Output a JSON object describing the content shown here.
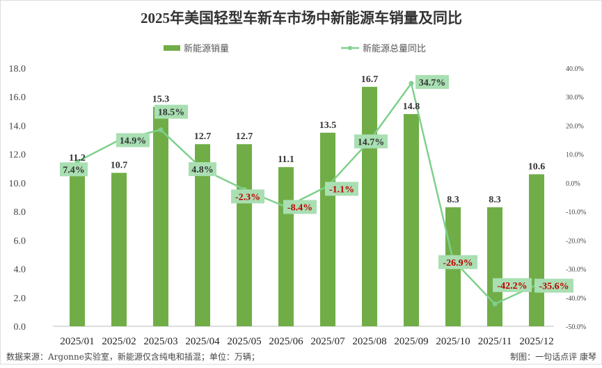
{
  "chart_data": {
    "type": "bar+line",
    "title": "2025年美国轻型车新车市场中新能源车销量及同比",
    "categories": [
      "2025/01",
      "2025/02",
      "2025/03",
      "2025/04",
      "2025/05",
      "2025/06",
      "2025/07",
      "2025/08",
      "2025/09",
      "2025/10",
      "2025/11",
      "2025/12"
    ],
    "series": [
      {
        "name": "新能源销量",
        "type": "bar",
        "axis": "left",
        "values": [
          11.2,
          10.7,
          15.3,
          12.7,
          12.7,
          11.1,
          13.5,
          16.7,
          14.8,
          8.3,
          8.3,
          10.6
        ],
        "labels": [
          "11.2",
          "10.7",
          "15.3",
          "12.7",
          "12.7",
          "11.1",
          "13.5",
          "16.7",
          "14.8",
          "8.3",
          "8.3",
          "10.6"
        ]
      },
      {
        "name": "新能源总量同比",
        "type": "line",
        "axis": "right",
        "values": [
          7.4,
          14.9,
          18.5,
          4.8,
          -2.3,
          -8.4,
          -1.1,
          14.7,
          34.7,
          -26.9,
          -42.2,
          -35.6
        ],
        "labels": [
          "7.4%",
          "14.9%",
          "18.5%",
          "4.8%",
          "-2.3%",
          "-8.4%",
          "-1.1%",
          "14.7%",
          "34.7%",
          "-26.9%",
          "-42.2%",
          "-35.6%"
        ]
      }
    ],
    "ylim": [
      0,
      18
    ],
    "yticks": [
      "0.0",
      "2.0",
      "4.0",
      "6.0",
      "8.0",
      "10.0",
      "12.0",
      "14.0",
      "16.0",
      "18.0"
    ],
    "y2lim": [
      -50,
      40
    ],
    "y2ticks": [
      "-50.0%",
      "-40.0%",
      "-30.0%",
      "-20.0%",
      "-10.0%",
      "0.0%",
      "10.0%",
      "20.0%",
      "30.0%",
      "40.0%"
    ],
    "legend": "top",
    "colors": {
      "bar": "#70ad47",
      "line": "#7fd08c",
      "label_bg": "#a9dfb2",
      "neg": "#c00000",
      "pos": "#333333"
    }
  },
  "footer": {
    "source": "数据来源：Argonne实验室，新能源仅含纯电和插混；单位：万辆；",
    "credit": "制图：一句话点评  康琴"
  }
}
